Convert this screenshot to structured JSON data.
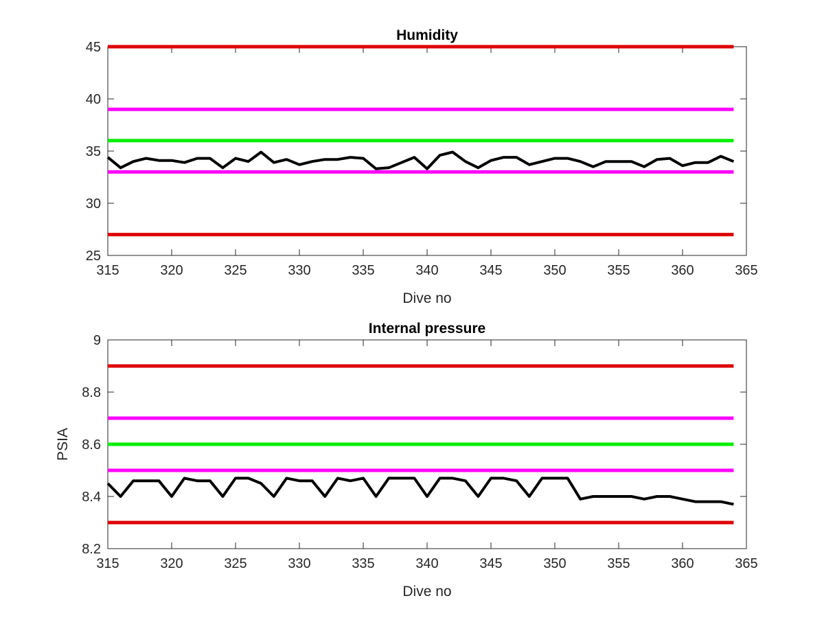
{
  "chart_data": [
    {
      "type": "line",
      "title": "Humidity",
      "xlabel": "Dive no",
      "ylabel": "",
      "xlim": [
        315,
        365
      ],
      "ylim": [
        25,
        45
      ],
      "xticks": [
        "315",
        "320",
        "325",
        "330",
        "335",
        "340",
        "345",
        "350",
        "355",
        "360",
        "365"
      ],
      "yticks": [
        "25",
        "30",
        "35",
        "40",
        "45"
      ],
      "grid": false,
      "thresholds": [
        {
          "value": 45,
          "color": "#dd0000"
        },
        {
          "value": 39,
          "color": "#ff00ff"
        },
        {
          "value": 36,
          "color": "#00ee00"
        },
        {
          "value": 33,
          "color": "#ff00ff"
        },
        {
          "value": 27,
          "color": "#dd0000"
        }
      ],
      "series": [
        {
          "color": "#000000",
          "x": [
            315,
            316,
            317,
            318,
            319,
            320,
            321,
            322,
            323,
            324,
            325,
            326,
            327,
            328,
            329,
            330,
            331,
            332,
            333,
            334,
            335,
            336,
            337,
            338,
            339,
            340,
            341,
            342,
            343,
            344,
            345,
            346,
            347,
            348,
            349,
            350,
            351,
            352,
            353,
            354,
            355,
            356,
            357,
            358,
            359,
            360,
            361,
            362,
            363,
            364
          ],
          "y": [
            34.4,
            33.4,
            34.0,
            34.3,
            34.1,
            34.1,
            33.9,
            34.3,
            34.3,
            33.4,
            34.3,
            34.0,
            34.9,
            33.9,
            34.2,
            33.7,
            34.0,
            34.2,
            34.2,
            34.4,
            34.3,
            33.3,
            33.4,
            33.9,
            34.4,
            33.3,
            34.6,
            34.9,
            34.0,
            33.4,
            34.1,
            34.4,
            34.4,
            33.7,
            34.0,
            34.3,
            34.3,
            34.0,
            33.5,
            34.0,
            34.0,
            34.0,
            33.5,
            34.2,
            34.3,
            33.6,
            33.9,
            33.9,
            34.5,
            34.0
          ]
        }
      ]
    },
    {
      "type": "line",
      "title": "Internal pressure",
      "xlabel": "Dive no",
      "ylabel": "PSIA",
      "xlim": [
        315,
        365
      ],
      "ylim": [
        8.2,
        9
      ],
      "xticks": [
        "315",
        "320",
        "325",
        "330",
        "335",
        "340",
        "345",
        "350",
        "355",
        "360",
        "365"
      ],
      "yticks": [
        "8.2",
        "8.4",
        "8.6",
        "8.8",
        "9"
      ],
      "grid": false,
      "thresholds": [
        {
          "value": 8.9,
          "color": "#dd0000"
        },
        {
          "value": 8.7,
          "color": "#ff00ff"
        },
        {
          "value": 8.6,
          "color": "#00ee00"
        },
        {
          "value": 8.5,
          "color": "#ff00ff"
        },
        {
          "value": 8.3,
          "color": "#dd0000"
        }
      ],
      "series": [
        {
          "color": "#000000",
          "x": [
            315,
            316,
            317,
            318,
            319,
            320,
            321,
            322,
            323,
            324,
            325,
            326,
            327,
            328,
            329,
            330,
            331,
            332,
            333,
            334,
            335,
            336,
            337,
            338,
            339,
            340,
            341,
            342,
            343,
            344,
            345,
            346,
            347,
            348,
            349,
            350,
            351,
            352,
            353,
            354,
            355,
            356,
            357,
            358,
            359,
            360,
            361,
            362,
            363,
            364
          ],
          "y": [
            8.45,
            8.4,
            8.46,
            8.46,
            8.46,
            8.4,
            8.47,
            8.46,
            8.46,
            8.4,
            8.47,
            8.47,
            8.45,
            8.4,
            8.47,
            8.46,
            8.46,
            8.4,
            8.47,
            8.46,
            8.47,
            8.4,
            8.47,
            8.47,
            8.47,
            8.4,
            8.47,
            8.47,
            8.46,
            8.4,
            8.47,
            8.47,
            8.46,
            8.4,
            8.47,
            8.47,
            8.47,
            8.39,
            8.4,
            8.4,
            8.4,
            8.4,
            8.39,
            8.4,
            8.4,
            8.39,
            8.38,
            8.38,
            8.38,
            8.37
          ]
        }
      ]
    }
  ]
}
